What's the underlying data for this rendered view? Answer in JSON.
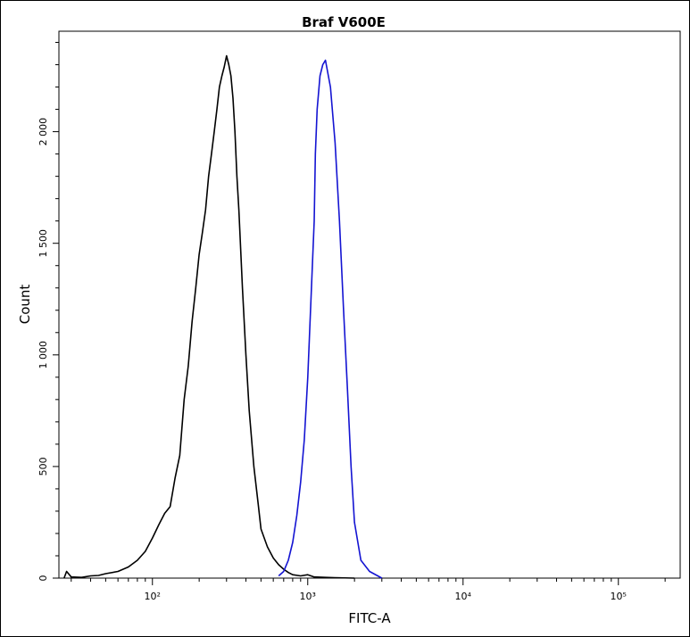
{
  "chart_data": {
    "type": "line",
    "title": "Braf V600E",
    "xlabel": "FITC-A",
    "ylabel": "Count",
    "x_scale": "log",
    "xlim": [
      25,
      250000
    ],
    "ylim": [
      0,
      2450
    ],
    "grid": false,
    "x_ticks": [
      {
        "value": 100,
        "label": "10²"
      },
      {
        "value": 1000,
        "label": "10³"
      },
      {
        "value": 10000,
        "label": "10⁴"
      },
      {
        "value": 100000,
        "label": "10⁵"
      }
    ],
    "y_ticks": [
      {
        "value": 0,
        "label": "0"
      },
      {
        "value": 500,
        "label": "500"
      },
      {
        "value": 1000,
        "label": "1 000"
      },
      {
        "value": 1500,
        "label": "1 500"
      },
      {
        "value": 2000,
        "label": "2 000"
      }
    ],
    "series": [
      {
        "color": "#000000",
        "x": [
          27,
          28,
          30,
          35,
          40,
          45,
          50,
          60,
          70,
          80,
          90,
          100,
          110,
          120,
          130,
          140,
          150,
          160,
          170,
          180,
          190,
          200,
          210,
          220,
          230,
          240,
          250,
          260,
          270,
          280,
          290,
          300,
          310,
          320,
          330,
          340,
          350,
          360,
          380,
          400,
          420,
          450,
          480,
          500,
          550,
          600,
          650,
          700,
          750,
          800,
          900,
          1000,
          1100,
          1300,
          1500,
          2000
        ],
        "y": [
          0,
          30,
          5,
          3,
          10,
          12,
          20,
          30,
          50,
          80,
          120,
          180,
          240,
          290,
          320,
          450,
          550,
          800,
          950,
          1150,
          1300,
          1450,
          1550,
          1650,
          1800,
          1900,
          2000,
          2100,
          2200,
          2250,
          2290,
          2340,
          2300,
          2250,
          2150,
          2000,
          1800,
          1650,
          1300,
          1000,
          750,
          500,
          330,
          220,
          140,
          90,
          60,
          40,
          25,
          15,
          10,
          15,
          5,
          3,
          2,
          0
        ]
      },
      {
        "color": "#1414d2",
        "x": [
          650,
          700,
          750,
          800,
          850,
          900,
          950,
          1000,
          1050,
          1100,
          1120,
          1150,
          1200,
          1250,
          1300,
          1400,
          1500,
          1600,
          1700,
          1800,
          1900,
          2000,
          2200,
          2500,
          3000
        ],
        "y": [
          10,
          30,
          80,
          160,
          280,
          430,
          620,
          900,
          1250,
          1600,
          1900,
          2100,
          2250,
          2300,
          2320,
          2200,
          1950,
          1600,
          1200,
          850,
          500,
          250,
          80,
          30,
          0
        ]
      }
    ]
  }
}
